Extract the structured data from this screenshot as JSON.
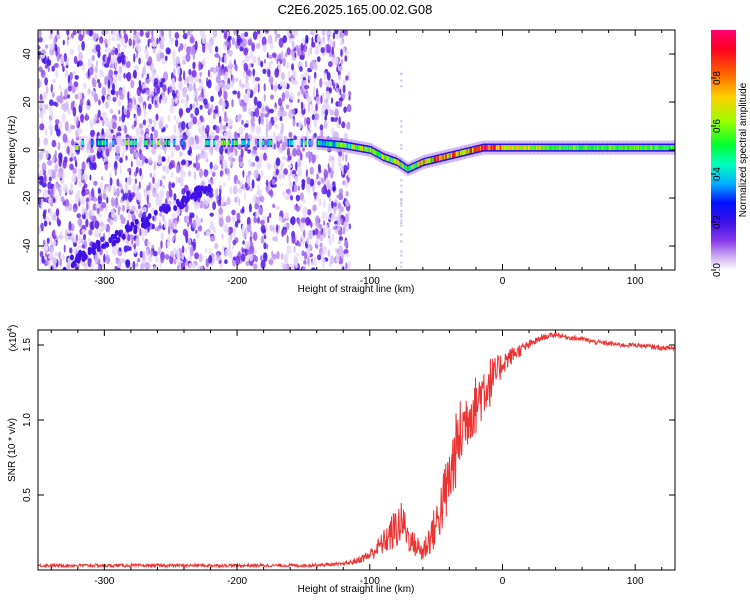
{
  "title": "C2E6.2025.165.00.02.G08",
  "chart_data": [
    {
      "type": "heatmap",
      "xlabel": "Height of straight line (km)",
      "ylabel": "Frequency (Hz)",
      "xlim": [
        -350,
        130
      ],
      "ylim": [
        -50,
        50
      ],
      "x_ticks": [
        -300,
        -200,
        -100,
        0,
        100
      ],
      "x_tick_labels": [
        "-300",
        "-200",
        "-100",
        "0",
        "100"
      ],
      "y_ticks": [
        -40,
        -20,
        0,
        20,
        40
      ],
      "y_tick_labels": [
        "-40",
        "-20",
        "0",
        "20",
        "40"
      ],
      "colorbar": {
        "label": "Normalized spectral amplitude",
        "range": [
          0,
          1
        ],
        "ticks": [
          0.0,
          0.2,
          0.4,
          0.6,
          0.8
        ],
        "tick_labels": [
          "0.0",
          "0.2",
          "0.4",
          "0.6",
          "0.8"
        ],
        "colormap": [
          "#ffffff",
          "#b889f0",
          "#7a2ee8",
          "#3a1ee8",
          "#0000ff",
          "#00c8ff",
          "#00ff80",
          "#9bff00",
          "#ffd000",
          "#ff6000",
          "#ff0020",
          "#ff0070"
        ]
      },
      "noise_region_x": [
        -350,
        -115
      ],
      "carrier_track": [
        {
          "x": -320,
          "freq": 3,
          "amp": 0.35
        },
        {
          "x": -250,
          "freq": 3,
          "amp": 0.4
        },
        {
          "x": -200,
          "freq": 3,
          "amp": 0.4
        },
        {
          "x": -170,
          "freq": 3,
          "amp": 0.4
        },
        {
          "x": -140,
          "freq": 3,
          "amp": 0.35
        },
        {
          "x": -120,
          "freq": 2,
          "amp": 0.45
        },
        {
          "x": -100,
          "freq": 0,
          "amp": 0.5
        },
        {
          "x": -90,
          "freq": -3,
          "amp": 0.5
        },
        {
          "x": -80,
          "freq": -5,
          "amp": 0.5
        },
        {
          "x": -72,
          "freq": -8,
          "amp": 0.45
        },
        {
          "x": -60,
          "freq": -5,
          "amp": 0.6
        },
        {
          "x": -45,
          "freq": -3,
          "amp": 0.75
        },
        {
          "x": -30,
          "freq": -1,
          "amp": 0.6
        },
        {
          "x": -15,
          "freq": 1,
          "amp": 0.85
        },
        {
          "x": 0,
          "freq": 1,
          "amp": 0.7
        },
        {
          "x": 40,
          "freq": 1,
          "amp": 0.55
        },
        {
          "x": 80,
          "freq": 1,
          "amp": 0.55
        },
        {
          "x": 130,
          "freq": 1,
          "amp": 0.55
        }
      ],
      "diagonal_feature": {
        "x": [
          -330,
          -220
        ],
        "freq": [
          -48,
          -15
        ]
      }
    },
    {
      "type": "line",
      "xlabel": "Height of straight line (km)",
      "ylabel": "SNR (10 * v/v)",
      "y_multiplier_label": "(x10",
      "y_multiplier_exponent": "4",
      "y_multiplier_suffix": ")",
      "xlim": [
        -350,
        130
      ],
      "ylim": [
        0,
        1.6
      ],
      "x_ticks": [
        -300,
        -200,
        -100,
        0,
        100
      ],
      "x_tick_labels": [
        "-300",
        "-200",
        "-100",
        "0",
        "100"
      ],
      "y_ticks": [
        0.5,
        1.0,
        1.5
      ],
      "y_tick_labels": [
        "0.5",
        "1.0",
        "1.5"
      ],
      "color": "#ee3333",
      "series": [
        {
          "x": [
            -350,
            -300,
            -250,
            -200,
            -150,
            -120,
            -110,
            -100,
            -90,
            -80,
            -75,
            -70,
            -60,
            -50,
            -45,
            -40,
            -35,
            -30,
            -25,
            -20,
            -15,
            -10,
            -5,
            0,
            10,
            20,
            30,
            40,
            50,
            60,
            70,
            80,
            90,
            100,
            110,
            120,
            130
          ],
          "values": [
            0.03,
            0.03,
            0.03,
            0.03,
            0.03,
            0.04,
            0.06,
            0.1,
            0.18,
            0.28,
            0.32,
            0.2,
            0.12,
            0.3,
            0.45,
            0.6,
            0.8,
            0.95,
            1.05,
            1.1,
            1.2,
            1.25,
            1.3,
            1.38,
            1.45,
            1.5,
            1.55,
            1.57,
            1.55,
            1.54,
            1.52,
            1.51,
            1.5,
            1.5,
            1.49,
            1.48,
            1.48
          ],
          "noise": [
            0.01,
            0.01,
            0.01,
            0.01,
            0.01,
            0.01,
            0.02,
            0.04,
            0.08,
            0.15,
            0.14,
            0.08,
            0.08,
            0.15,
            0.2,
            0.25,
            0.25,
            0.25,
            0.2,
            0.2,
            0.2,
            0.18,
            0.12,
            0.08,
            0.05,
            0.03,
            0.02,
            0.015,
            0.015,
            0.015,
            0.015,
            0.015,
            0.015,
            0.015,
            0.015,
            0.015,
            0.015
          ]
        }
      ]
    }
  ]
}
